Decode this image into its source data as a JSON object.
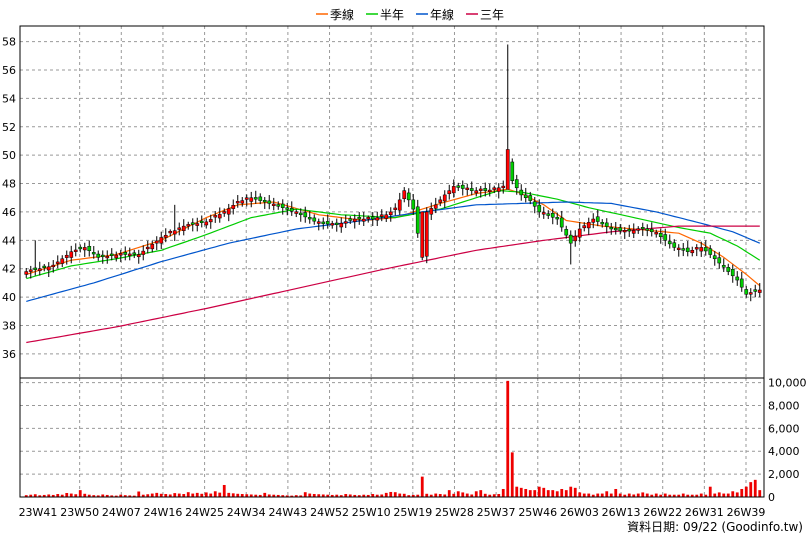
{
  "chart_data": {
    "type": "candlestick",
    "legend": [
      {
        "name": "季線",
        "color": "#ff6600"
      },
      {
        "name": "半年",
        "color": "#00cc00"
      },
      {
        "name": "年線",
        "color": "#0055cc"
      },
      {
        "name": "三年",
        "color": "#cc0044"
      }
    ],
    "price_axis": {
      "ylim": [
        34.3,
        59.1
      ],
      "ticks": [
        36,
        38,
        40,
        42,
        44,
        46,
        48,
        50,
        52,
        54,
        56,
        58
      ]
    },
    "volume_axis": {
      "ylim": [
        0,
        10400
      ],
      "ticks": [
        "0",
        "2,000",
        "4,000",
        "6,000",
        "8,000",
        "10,000"
      ]
    },
    "x_labels": [
      "23W41",
      "23W50",
      "24W07",
      "24W16",
      "24W25",
      "24W34",
      "24W43",
      "24W52",
      "25W10",
      "25W19",
      "25W28",
      "25W37",
      "25W46",
      "26W03",
      "26W13",
      "26W22",
      "26W31",
      "26W39"
    ],
    "colors": {
      "up": "#ff0000",
      "down": "#00cc00",
      "volume": "#ee0000",
      "grid": "#999999"
    },
    "footnote": "資料日期: 09/22  (Goodinfo.tw)",
    "anchors": {
      "close": [
        [
          0,
          41.8
        ],
        [
          6,
          42.2
        ],
        [
          10,
          43.2
        ],
        [
          13,
          43.5
        ],
        [
          16,
          42.8
        ],
        [
          21,
          43.0
        ],
        [
          25,
          43.0
        ],
        [
          30,
          44.2
        ],
        [
          35,
          45.0
        ],
        [
          40,
          45.3
        ],
        [
          44,
          46.0
        ],
        [
          47,
          46.7
        ],
        [
          50,
          47.0
        ],
        [
          54,
          46.6
        ],
        [
          57,
          46.3
        ],
        [
          61,
          45.8
        ],
        [
          65,
          45.2
        ],
        [
          69,
          45.1
        ],
        [
          73,
          45.5
        ],
        [
          77,
          45.5
        ],
        [
          80,
          45.8
        ],
        [
          82,
          46.2
        ],
        [
          84,
          47.5
        ],
        [
          86,
          46.2
        ],
        [
          88,
          42.8
        ],
        [
          89,
          46.0
        ],
        [
          91,
          46.5
        ],
        [
          93,
          47.2
        ],
        [
          95,
          47.8
        ],
        [
          99,
          47.5
        ],
        [
          103,
          47.5
        ],
        [
          106,
          47.8
        ],
        [
          107,
          49.6
        ],
        [
          108,
          48.2
        ],
        [
          110,
          47.2
        ],
        [
          112,
          46.8
        ],
        [
          114,
          46.0
        ],
        [
          118,
          45.5
        ],
        [
          121,
          43.8
        ],
        [
          123,
          44.8
        ],
        [
          126,
          45.5
        ],
        [
          130,
          44.8
        ],
        [
          133,
          44.6
        ],
        [
          137,
          44.8
        ],
        [
          140,
          44.5
        ],
        [
          144,
          43.5
        ],
        [
          147,
          43.2
        ],
        [
          150,
          43.5
        ],
        [
          152,
          43.0
        ],
        [
          154,
          42.4
        ],
        [
          156,
          41.8
        ],
        [
          158,
          41.2
        ],
        [
          160,
          40.2
        ],
        [
          162,
          40.4
        ],
        [
          163,
          40.5
        ]
      ],
      "ma_quarter": [
        [
          0,
          41.6
        ],
        [
          10,
          42.6
        ],
        [
          20,
          43.0
        ],
        [
          30,
          44.0
        ],
        [
          40,
          45.6
        ],
        [
          47,
          46.5
        ],
        [
          55,
          46.7
        ],
        [
          65,
          45.8
        ],
        [
          75,
          45.4
        ],
        [
          82,
          45.6
        ],
        [
          92,
          46.6
        ],
        [
          100,
          47.3
        ],
        [
          107,
          47.6
        ],
        [
          110,
          47.3
        ],
        [
          115,
          46.5
        ],
        [
          120,
          45.4
        ],
        [
          128,
          45.0
        ],
        [
          135,
          44.8
        ],
        [
          145,
          44.5
        ],
        [
          150,
          43.8
        ],
        [
          155,
          42.8
        ],
        [
          160,
          41.6
        ],
        [
          163,
          40.8
        ]
      ],
      "ma_half": [
        [
          0,
          41.3
        ],
        [
          10,
          42.2
        ],
        [
          20,
          42.7
        ],
        [
          30,
          43.3
        ],
        [
          40,
          44.4
        ],
        [
          50,
          45.6
        ],
        [
          60,
          46.2
        ],
        [
          70,
          45.8
        ],
        [
          82,
          45.6
        ],
        [
          92,
          46.2
        ],
        [
          105,
          47.5
        ],
        [
          110,
          47.4
        ],
        [
          118,
          46.9
        ],
        [
          125,
          46.3
        ],
        [
          135,
          45.6
        ],
        [
          145,
          44.9
        ],
        [
          152,
          44.5
        ],
        [
          158,
          43.6
        ],
        [
          163,
          42.6
        ]
      ],
      "ma_year": [
        [
          0,
          39.7
        ],
        [
          15,
          41.0
        ],
        [
          30,
          42.5
        ],
        [
          45,
          43.8
        ],
        [
          60,
          44.8
        ],
        [
          75,
          45.4
        ],
        [
          88,
          46.0
        ],
        [
          100,
          46.5
        ],
        [
          110,
          46.6
        ],
        [
          120,
          46.7
        ],
        [
          130,
          46.6
        ],
        [
          140,
          46.0
        ],
        [
          150,
          45.2
        ],
        [
          157,
          44.6
        ],
        [
          163,
          43.8
        ]
      ],
      "ma_3yr": [
        [
          0,
          36.8
        ],
        [
          20,
          37.9
        ],
        [
          40,
          39.2
        ],
        [
          60,
          40.6
        ],
        [
          80,
          42.0
        ],
        [
          100,
          43.3
        ],
        [
          115,
          44.0
        ],
        [
          130,
          44.6
        ],
        [
          145,
          45.0
        ],
        [
          163,
          45.0
        ]
      ]
    },
    "spikes": [
      {
        "i": 88,
        "low": 42.6
      },
      {
        "i": 107,
        "high": 57.8
      },
      {
        "i": 121,
        "low": 42.3
      },
      {
        "i": 33,
        "high": 46.5
      },
      {
        "i": 2,
        "high": 44.0
      }
    ],
    "volumes": [
      [
        0,
        160
      ],
      [
        1,
        200
      ],
      [
        2,
        240
      ],
      [
        3,
        150
      ],
      [
        4,
        180
      ],
      [
        5,
        220
      ],
      [
        6,
        180
      ],
      [
        7,
        260
      ],
      [
        8,
        200
      ],
      [
        9,
        350
      ],
      [
        10,
        300
      ],
      [
        11,
        240
      ],
      [
        12,
        600
      ],
      [
        13,
        280
      ],
      [
        14,
        200
      ],
      [
        15,
        160
      ],
      [
        16,
        140
      ],
      [
        17,
        220
      ],
      [
        18,
        180
      ],
      [
        19,
        140
      ],
      [
        20,
        120
      ],
      [
        21,
        200
      ],
      [
        22,
        160
      ],
      [
        23,
        140
      ],
      [
        24,
        120
      ],
      [
        25,
        480
      ],
      [
        26,
        200
      ],
      [
        27,
        240
      ],
      [
        28,
        300
      ],
      [
        29,
        360
      ],
      [
        30,
        280
      ],
      [
        31,
        260
      ],
      [
        32,
        220
      ],
      [
        33,
        340
      ],
      [
        34,
        300
      ],
      [
        35,
        260
      ],
      [
        36,
        420
      ],
      [
        37,
        300
      ],
      [
        38,
        360
      ],
      [
        39,
        280
      ],
      [
        40,
        400
      ],
      [
        41,
        300
      ],
      [
        42,
        500
      ],
      [
        43,
        380
      ],
      [
        44,
        1050
      ],
      [
        45,
        360
      ],
      [
        46,
        320
      ],
      [
        47,
        280
      ],
      [
        48,
        260
      ],
      [
        49,
        240
      ],
      [
        50,
        220
      ],
      [
        51,
        200
      ],
      [
        52,
        180
      ],
      [
        53,
        360
      ],
      [
        54,
        220
      ],
      [
        55,
        200
      ],
      [
        56,
        180
      ],
      [
        57,
        160
      ],
      [
        58,
        140
      ],
      [
        59,
        120
      ],
      [
        60,
        160
      ],
      [
        61,
        140
      ],
      [
        62,
        420
      ],
      [
        63,
        300
      ],
      [
        64,
        260
      ],
      [
        65,
        240
      ],
      [
        66,
        220
      ],
      [
        67,
        200
      ],
      [
        68,
        180
      ],
      [
        69,
        200
      ],
      [
        70,
        160
      ],
      [
        71,
        260
      ],
      [
        72,
        220
      ],
      [
        73,
        180
      ],
      [
        74,
        160
      ],
      [
        75,
        200
      ],
      [
        76,
        180
      ],
      [
        77,
        260
      ],
      [
        78,
        200
      ],
      [
        79,
        220
      ],
      [
        80,
        360
      ],
      [
        81,
        440
      ],
      [
        82,
        420
      ],
      [
        83,
        300
      ],
      [
        84,
        280
      ],
      [
        85,
        160
      ],
      [
        86,
        180
      ],
      [
        87,
        200
      ],
      [
        88,
        1780
      ],
      [
        89,
        280
      ],
      [
        90,
        200
      ],
      [
        91,
        300
      ],
      [
        92,
        260
      ],
      [
        93,
        220
      ],
      [
        94,
        600
      ],
      [
        95,
        280
      ],
      [
        96,
        500
      ],
      [
        97,
        400
      ],
      [
        98,
        300
      ],
      [
        99,
        220
      ],
      [
        100,
        500
      ],
      [
        101,
        600
      ],
      [
        102,
        280
      ],
      [
        103,
        200
      ],
      [
        104,
        240
      ],
      [
        105,
        260
      ],
      [
        106,
        700
      ],
      [
        107,
        10150
      ],
      [
        108,
        3900
      ],
      [
        109,
        900
      ],
      [
        110,
        800
      ],
      [
        111,
        700
      ],
      [
        112,
        600
      ],
      [
        113,
        600
      ],
      [
        114,
        900
      ],
      [
        115,
        800
      ],
      [
        116,
        600
      ],
      [
        117,
        600
      ],
      [
        118,
        500
      ],
      [
        119,
        700
      ],
      [
        120,
        600
      ],
      [
        121,
        900
      ],
      [
        122,
        800
      ],
      [
        123,
        400
      ],
      [
        124,
        300
      ],
      [
        125,
        300
      ],
      [
        126,
        200
      ],
      [
        127,
        300
      ],
      [
        128,
        300
      ],
      [
        129,
        500
      ],
      [
        130,
        300
      ],
      [
        131,
        700
      ],
      [
        132,
        300
      ],
      [
        133,
        200
      ],
      [
        134,
        300
      ],
      [
        135,
        220
      ],
      [
        136,
        300
      ],
      [
        137,
        400
      ],
      [
        138,
        300
      ],
      [
        139,
        200
      ],
      [
        140,
        300
      ],
      [
        141,
        200
      ],
      [
        142,
        300
      ],
      [
        143,
        200
      ],
      [
        144,
        200
      ],
      [
        145,
        200
      ],
      [
        146,
        300
      ],
      [
        147,
        200
      ],
      [
        148,
        200
      ],
      [
        149,
        200
      ],
      [
        150,
        300
      ],
      [
        151,
        200
      ],
      [
        152,
        900
      ],
      [
        153,
        300
      ],
      [
        154,
        400
      ],
      [
        155,
        300
      ],
      [
        156,
        300
      ],
      [
        157,
        500
      ],
      [
        158,
        400
      ],
      [
        159,
        700
      ],
      [
        160,
        900
      ],
      [
        161,
        1300
      ],
      [
        162,
        1500
      ],
      [
        163,
        600
      ]
    ]
  }
}
